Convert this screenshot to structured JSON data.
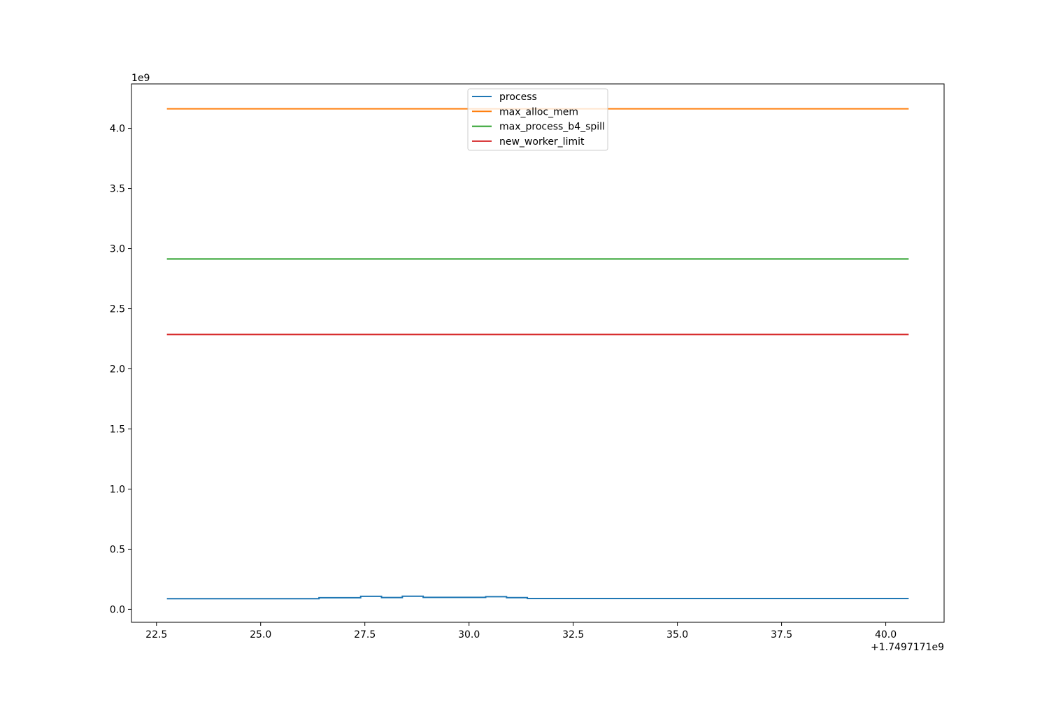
{
  "chart_data": {
    "type": "line",
    "title": "",
    "xlabel": "",
    "ylabel": "",
    "x_offset_label": "+1.7497171e9",
    "y_scale_label": "1e9",
    "xlim": [
      21.9,
      41.4
    ],
    "ylim": [
      -0.108,
      4.37
    ],
    "x_ticks": [
      22.5,
      25.0,
      27.5,
      30.0,
      32.5,
      35.0,
      37.5,
      40.0
    ],
    "x_tick_labels": [
      "22.5",
      "25.0",
      "27.5",
      "30.0",
      "32.5",
      "35.0",
      "37.5",
      "40.0"
    ],
    "y_ticks": [
      0.0,
      0.5,
      1.0,
      1.5,
      2.0,
      2.5,
      3.0,
      3.5,
      4.0
    ],
    "y_tick_labels": [
      "0.0",
      "0.5",
      "1.0",
      "1.5",
      "2.0",
      "2.5",
      "3.0",
      "3.5",
      "4.0"
    ],
    "grid": false,
    "legend_position": "top-center",
    "series": [
      {
        "name": "process",
        "color": "#1f77b4",
        "step": true,
        "x": [
          22.75,
          26.4,
          27.4,
          27.9,
          28.4,
          28.9,
          29.9,
          30.4,
          30.9,
          31.4,
          40.55
        ],
        "y": [
          0.088,
          0.096,
          0.108,
          0.098,
          0.109,
          0.099,
          0.099,
          0.105,
          0.097,
          0.09,
          0.09
        ]
      },
      {
        "name": "max_alloc_mem",
        "color": "#ff7f0e",
        "step": false,
        "x": [
          22.75,
          40.55
        ],
        "y": [
          4.163,
          4.163
        ]
      },
      {
        "name": "max_process_b4_spill",
        "color": "#2ca02c",
        "step": false,
        "x": [
          22.75,
          40.55
        ],
        "y": [
          2.914,
          2.914
        ]
      },
      {
        "name": "new_worker_limit",
        "color": "#d62728",
        "step": false,
        "x": [
          22.75,
          40.55
        ],
        "y": [
          2.286,
          2.286
        ]
      }
    ]
  }
}
